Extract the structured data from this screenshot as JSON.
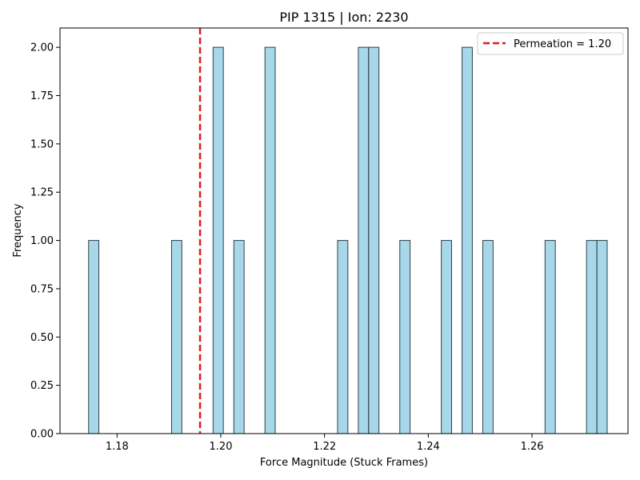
{
  "chart_data": {
    "type": "bar",
    "title": "PIP 1315 | Ion: 2230",
    "xlabel": "Force Magnitude (Stuck Frames)",
    "ylabel": "Frequency",
    "xlim": [
      1.169,
      1.2785
    ],
    "ylim": [
      0,
      2.1
    ],
    "bin_width": 0.00198,
    "bars": [
      {
        "x": 1.1755,
        "value": 1
      },
      {
        "x": 1.1915,
        "value": 1
      },
      {
        "x": 1.1995,
        "value": 2
      },
      {
        "x": 1.2035,
        "value": 1
      },
      {
        "x": 1.2095,
        "value": 2
      },
      {
        "x": 1.2235,
        "value": 1
      },
      {
        "x": 1.2275,
        "value": 2
      },
      {
        "x": 1.2295,
        "value": 2
      },
      {
        "x": 1.2355,
        "value": 1
      },
      {
        "x": 1.2435,
        "value": 1
      },
      {
        "x": 1.2475,
        "value": 2
      },
      {
        "x": 1.2515,
        "value": 1
      },
      {
        "x": 1.2635,
        "value": 1
      },
      {
        "x": 1.2715,
        "value": 1
      },
      {
        "x": 1.2735,
        "value": 1
      }
    ],
    "bar_fill": "#a6d8ea",
    "bar_stroke": "#2f3f48",
    "reference_line": {
      "x": 1.196,
      "label": "Permeation = 1.20",
      "color": "#e41a1c",
      "style": "dashed"
    },
    "x_ticks": [
      {
        "value": 1.18,
        "label": "1.18"
      },
      {
        "value": 1.2,
        "label": "1.20"
      },
      {
        "value": 1.22,
        "label": "1.22"
      },
      {
        "value": 1.24,
        "label": "1.24"
      },
      {
        "value": 1.26,
        "label": "1.26"
      }
    ],
    "y_ticks": [
      {
        "value": 0.0,
        "label": "0.00"
      },
      {
        "value": 0.25,
        "label": "0.25"
      },
      {
        "value": 0.5,
        "label": "0.50"
      },
      {
        "value": 0.75,
        "label": "0.75"
      },
      {
        "value": 1.0,
        "label": "1.00"
      },
      {
        "value": 1.25,
        "label": "1.25"
      },
      {
        "value": 1.5,
        "label": "1.50"
      },
      {
        "value": 1.75,
        "label": "1.75"
      },
      {
        "value": 2.0,
        "label": "2.00"
      }
    ],
    "legend": {
      "placement": "top-right"
    },
    "grid": false
  }
}
